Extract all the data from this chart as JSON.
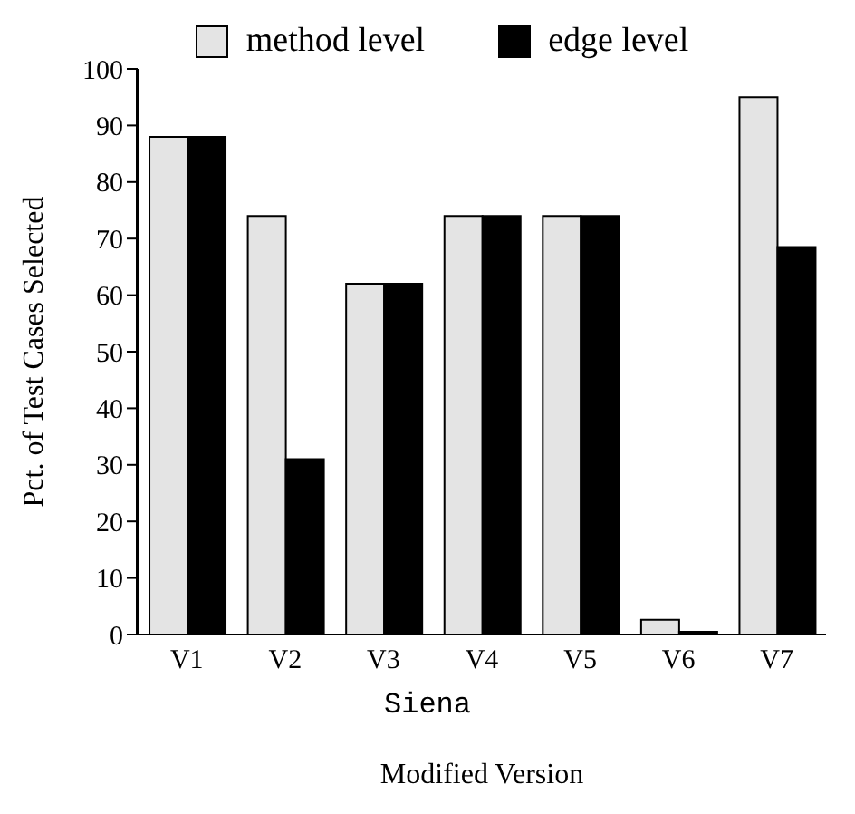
{
  "chart_data": {
    "type": "bar",
    "xlabel": "Modified Version",
    "ylabel": "Pct. of Test Cases Selected",
    "annotations": [
      "Siena"
    ],
    "categories": [
      "V1",
      "V2",
      "V3",
      "V4",
      "V5",
      "V6",
      "V7"
    ],
    "series": [
      {
        "name": "method level",
        "color": "#e4e4e4",
        "values": [
          88,
          74,
          62,
          74,
          74,
          2.6,
          95
        ]
      },
      {
        "name": "edge level",
        "color": "#000000",
        "values": [
          88,
          31,
          62,
          74,
          74,
          0.5,
          68.5
        ]
      }
    ],
    "ylim": [
      0,
      100
    ],
    "yticks": [
      0,
      10,
      20,
      30,
      40,
      50,
      60,
      70,
      80,
      90,
      100
    ],
    "grid": false,
    "legend": "top"
  }
}
